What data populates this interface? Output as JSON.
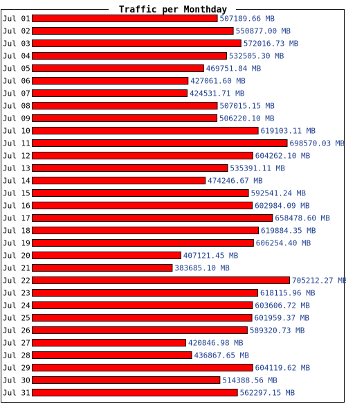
{
  "chart_data": {
    "type": "bar",
    "orientation": "horizontal",
    "title": "Traffic per Monthday",
    "unit": "MB",
    "bar_color": "#ff0000",
    "label_color": "#1f3f8f",
    "categories": [
      "Jul 01",
      "Jul 02",
      "Jul 03",
      "Jul 04",
      "Jul 05",
      "Jul 06",
      "Jul 07",
      "Jul 08",
      "Jul 09",
      "Jul 10",
      "Jul 11",
      "Jul 12",
      "Jul 13",
      "Jul 14",
      "Jul 15",
      "Jul 16",
      "Jul 17",
      "Jul 18",
      "Jul 19",
      "Jul 20",
      "Jul 21",
      "Jul 22",
      "Jul 23",
      "Jul 24",
      "Jul 25",
      "Jul 26",
      "Jul 27",
      "Jul 28",
      "Jul 29",
      "Jul 30",
      "Jul 31"
    ],
    "values": [
      507189.66,
      550877.0,
      572016.73,
      532505.3,
      469751.84,
      427061.6,
      424531.71,
      507015.15,
      506220.1,
      619103.11,
      698570.03,
      604262.1,
      535391.11,
      474246.67,
      592541.24,
      602984.09,
      658478.6,
      619884.35,
      606254.4,
      407121.45,
      383685.1,
      705212.27,
      618115.96,
      603606.72,
      601959.37,
      589320.73,
      420846.98,
      436867.65,
      604119.62,
      514388.56,
      562297.15
    ],
    "value_labels": [
      "507189.66 MB",
      "550877.00 MB",
      "572016.73 MB",
      "532505.30 MB",
      "469751.84 MB",
      "427061.60 MB",
      "424531.71 MB",
      "507015.15 MB",
      "506220.10 MB",
      "619103.11 MB",
      "698570.03 MB",
      "604262.10 MB",
      "535391.11 MB",
      "474246.67 MB",
      "592541.24 MB",
      "602984.09 MB",
      "658478.60 MB",
      "619884.35 MB",
      "606254.40 MB",
      "407121.45 MB",
      "383685.10 MB",
      "705212.27 MB",
      "618115.96 MB",
      "603606.72 MB",
      "601959.37 MB",
      "589320.73 MB",
      "420846.98 MB",
      "436867.65 MB",
      "604119.62 MB",
      "514388.56 MB",
      "562297.15 MB"
    ]
  }
}
